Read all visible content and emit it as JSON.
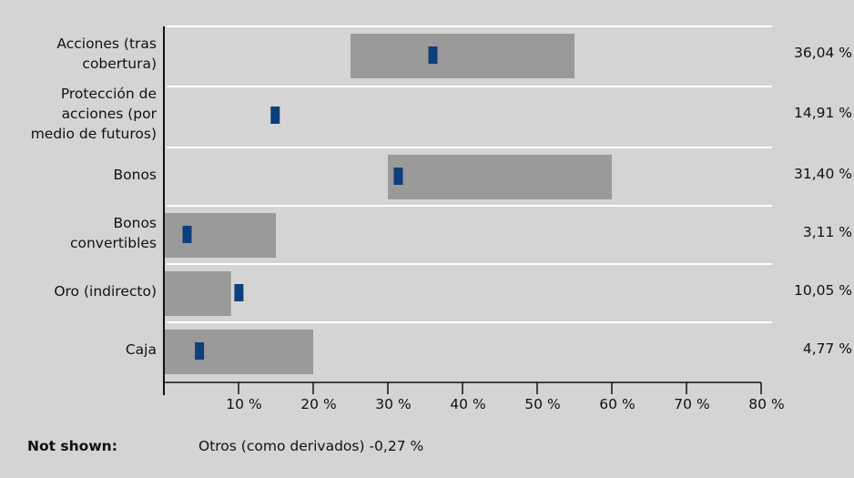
{
  "chart_data": {
    "type": "bar",
    "categories": [
      "Acciones (tras\ncobertura)",
      "Protección de\nacciones (por\nmedio de futuros)",
      "Bonos",
      "Bonos\nconvertibles",
      "Oro (indirecto)",
      "Caja"
    ],
    "series": [
      {
        "values": [
          36.04,
          14.91,
          31.4,
          3.11,
          10.05,
          4.77
        ]
      },
      {
        "ranges": [
          [
            25,
            55
          ],
          null,
          [
            30,
            60
          ],
          [
            0,
            15
          ],
          [
            0,
            9
          ],
          [
            0,
            20
          ]
        ]
      }
    ],
    "value_labels": [
      "36,04 %",
      "14,91 %",
      "31,40 %",
      "3,11 %",
      "10,05 %",
      "4,77 %"
    ],
    "xticks": [
      "10 %",
      "20 %",
      "30 %",
      "40 %",
      "50 %",
      "60 %",
      "70 %",
      "80 %"
    ],
    "xlim": [
      0,
      80
    ],
    "colors": {
      "range": "#9a9a9a",
      "marker": "#0d3f7a",
      "background": "#d4d4d4",
      "gridline": "#ffffff"
    }
  },
  "note": {
    "label": "Not shown:",
    "text": "Otros (como derivados) -0,27 %"
  }
}
